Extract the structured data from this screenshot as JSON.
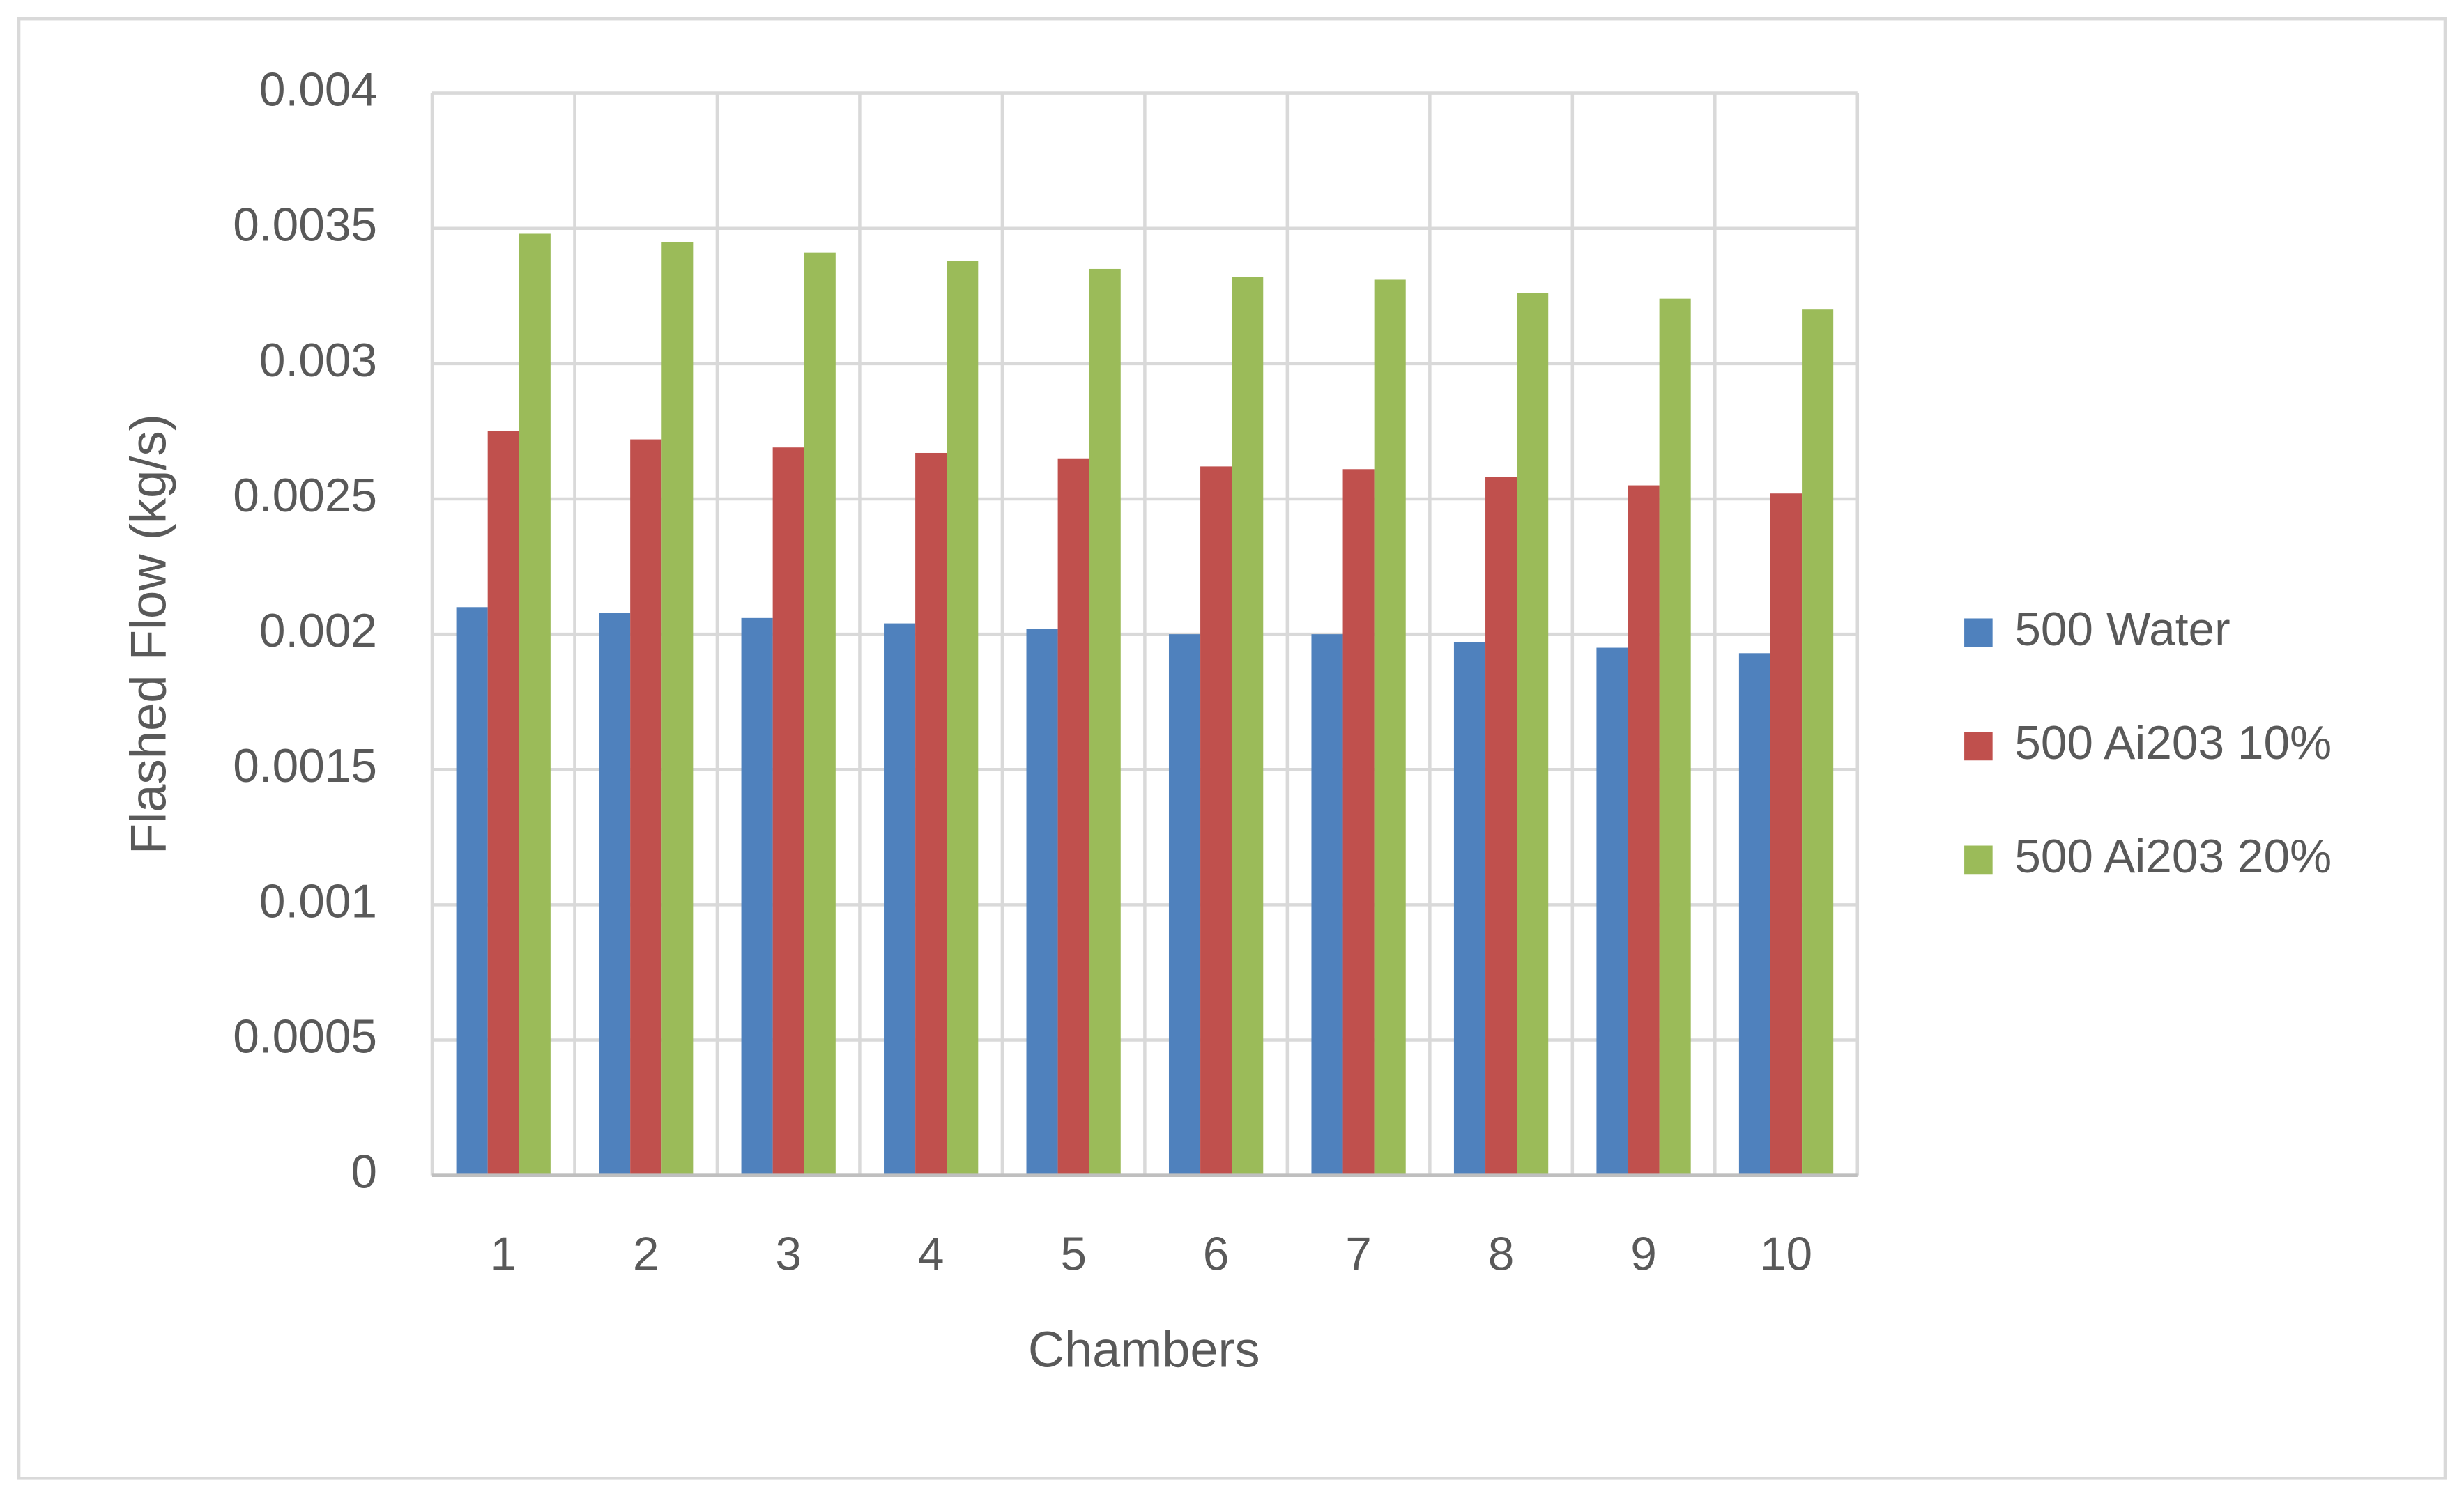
{
  "chart_data": {
    "type": "bar",
    "x_label": "Chambers",
    "y_label": "Flashed Flow (kg/s)",
    "categories": [
      "1",
      "2",
      "3",
      "4",
      "5",
      "6",
      "7",
      "8",
      "9",
      "10"
    ],
    "series": [
      {
        "name": "500 Water",
        "color": "#4f81bd",
        "values": [
          0.0021,
          0.00208,
          0.00206,
          0.00204,
          0.00202,
          0.002,
          0.002,
          0.00197,
          0.00195,
          0.00193
        ]
      },
      {
        "name": "500 Ai203 10%",
        "color": "#c0504d",
        "values": [
          0.00275,
          0.00272,
          0.00269,
          0.00267,
          0.00265,
          0.00262,
          0.00261,
          0.00258,
          0.00255,
          0.00252
        ]
      },
      {
        "name": "500 Ai203 20%",
        "color": "#9bbb59",
        "values": [
          0.00348,
          0.00345,
          0.00341,
          0.00338,
          0.00335,
          0.00332,
          0.00331,
          0.00326,
          0.00324,
          0.0032
        ]
      }
    ],
    "ylim": [
      0,
      0.004
    ],
    "yticks": [
      0,
      0.0005,
      0.001,
      0.0015,
      0.002,
      0.0025,
      0.003,
      0.0035,
      0.004
    ],
    "grid": true,
    "legend": "right"
  }
}
